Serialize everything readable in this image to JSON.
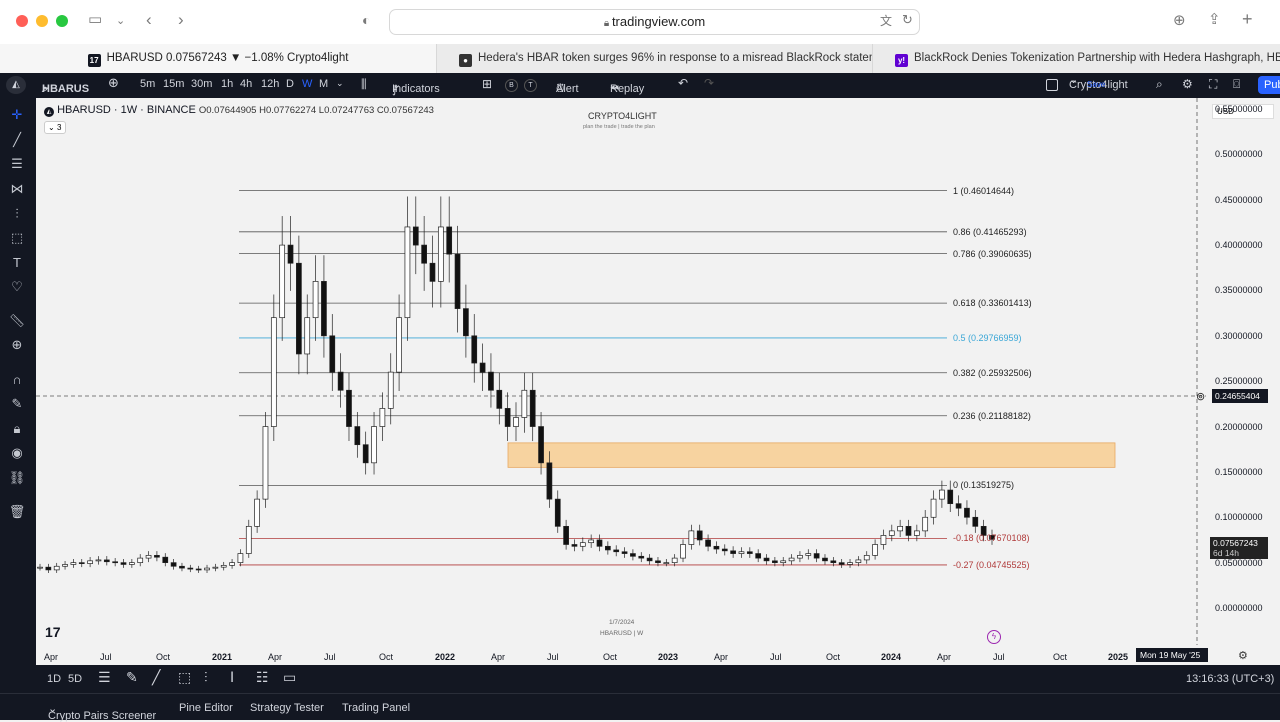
{
  "browser": {
    "url": "tradingview.com",
    "tabs": [
      {
        "label": "HBARUSD 0.07567243 ▼ −1.08% Crypto4light"
      },
      {
        "label": "Hedera's HBAR token surges 96% in response to a misread BlackRock stateme..."
      },
      {
        "label": "BlackRock Denies Tokenization Partnership with Hedera Hashgraph, HBAR Dro..."
      }
    ]
  },
  "toolbar": {
    "symbol": "HBARUS",
    "intervals": [
      "5m",
      "15m",
      "30m",
      "1h",
      "4h",
      "12h",
      "D",
      "W",
      "M"
    ],
    "active_interval": "W",
    "indicators_label": "Indicators",
    "alert_label": "Alert",
    "replay_label": "Replay",
    "layout_name": "Crypto4light",
    "layout_save": "Save",
    "publish_label": "Pub"
  },
  "legend": {
    "title": "HBARUSD · 1W · BINANCE",
    "ohlc": "O0.07644905 H0.07762274 L0.07247763 C0.07567243",
    "indicator_count": "3"
  },
  "watermark": {
    "title": "CRYPTO4LIGHT",
    "subtitle": "plan the trade | trade the plan",
    "bottom_date": "1/7/2024",
    "bottom_symbol": "HBARUSD | W"
  },
  "currency": "USD",
  "crosshair": {
    "price": "0.24655404",
    "time": "Mon 19 May '25"
  },
  "last_price": {
    "value": "0.07567243",
    "countdown": "6d 14h"
  },
  "chart_data": {
    "type": "candlestick",
    "title": "HBARUSD · 1W · BINANCE",
    "y_ticks": [
      "0.55000000",
      "0.50000000",
      "0.45000000",
      "0.40000000",
      "0.35000000",
      "0.30000000",
      "0.25000000",
      "0.20000000",
      "0.15000000",
      "0.10000000",
      "0.05000000",
      "0.00000000"
    ],
    "x_ticks": [
      "Apr",
      "Jul",
      "Oct",
      "2021",
      "Apr",
      "Jul",
      "Oct",
      "2022",
      "Apr",
      "Jul",
      "Oct",
      "2023",
      "Apr",
      "Jul",
      "Oct",
      "2024",
      "Apr",
      "Jul",
      "Oct",
      "2025"
    ],
    "ylim": [
      0,
      0.57
    ],
    "fib_levels": [
      {
        "label": "1 (0.46014644)",
        "value": 0.46014644,
        "color": "#555555"
      },
      {
        "label": "0.86 (0.41465293)",
        "value": 0.41465293,
        "color": "#555555"
      },
      {
        "label": "0.786 (0.39060635)",
        "value": 0.39060635,
        "color": "#555555"
      },
      {
        "label": "0.618 (0.33601413)",
        "value": 0.33601413,
        "color": "#555555"
      },
      {
        "label": "0.5 (0.29766959)",
        "value": 0.29766959,
        "color": "#3ba7d6"
      },
      {
        "label": "0.382 (0.25932506)",
        "value": 0.25932506,
        "color": "#555555"
      },
      {
        "label": "0.236 (0.21188182)",
        "value": 0.21188182,
        "color": "#555555"
      },
      {
        "label": "0 (0.13519275)",
        "value": 0.13519275,
        "color": "#555555"
      },
      {
        "label": "-0.18 (0.07670108)",
        "value": 0.07670108,
        "color": "#b03a3a"
      },
      {
        "label": "-0.27 (0.04745525)",
        "value": 0.04745525,
        "color": "#b03a3a"
      }
    ],
    "zone": {
      "from": 0.155,
      "to": 0.182,
      "color": "#f7d3a0"
    },
    "close_path": [
      0.045,
      0.042,
      0.046,
      0.048,
      0.05,
      0.049,
      0.052,
      0.053,
      0.051,
      0.05,
      0.048,
      0.05,
      0.055,
      0.058,
      0.056,
      0.05,
      0.046,
      0.044,
      0.043,
      0.042,
      0.044,
      0.045,
      0.047,
      0.05,
      0.06,
      0.09,
      0.12,
      0.2,
      0.32,
      0.4,
      0.38,
      0.28,
      0.32,
      0.36,
      0.3,
      0.26,
      0.24,
      0.2,
      0.18,
      0.16,
      0.2,
      0.22,
      0.26,
      0.32,
      0.42,
      0.4,
      0.38,
      0.36,
      0.42,
      0.39,
      0.33,
      0.3,
      0.27,
      0.26,
      0.24,
      0.22,
      0.2,
      0.21,
      0.24,
      0.2,
      0.16,
      0.12,
      0.09,
      0.07,
      0.068,
      0.072,
      0.075,
      0.068,
      0.064,
      0.062,
      0.06,
      0.057,
      0.055,
      0.052,
      0.05,
      0.05,
      0.055,
      0.07,
      0.085,
      0.075,
      0.068,
      0.065,
      0.063,
      0.06,
      0.062,
      0.06,
      0.055,
      0.052,
      0.05,
      0.052,
      0.055,
      0.058,
      0.06,
      0.055,
      0.052,
      0.05,
      0.048,
      0.05,
      0.053,
      0.058,
      0.07,
      0.08,
      0.085,
      0.09,
      0.08,
      0.085,
      0.1,
      0.12,
      0.13,
      0.115,
      0.11,
      0.1,
      0.09,
      0.08,
      0.0757
    ],
    "price_grid": [
      0.55,
      0.5,
      0.45,
      0.4,
      0.35,
      0.3,
      0.25,
      0.2,
      0.15,
      0.1,
      0.05,
      0.0
    ]
  },
  "bottom": {
    "ranges": [
      "1D",
      "5D"
    ],
    "time": "13:16:33 (UTC+3)",
    "panels": [
      "Crypto Pairs Screener",
      "Pine Editor",
      "Strategy Tester",
      "Trading Panel"
    ]
  }
}
